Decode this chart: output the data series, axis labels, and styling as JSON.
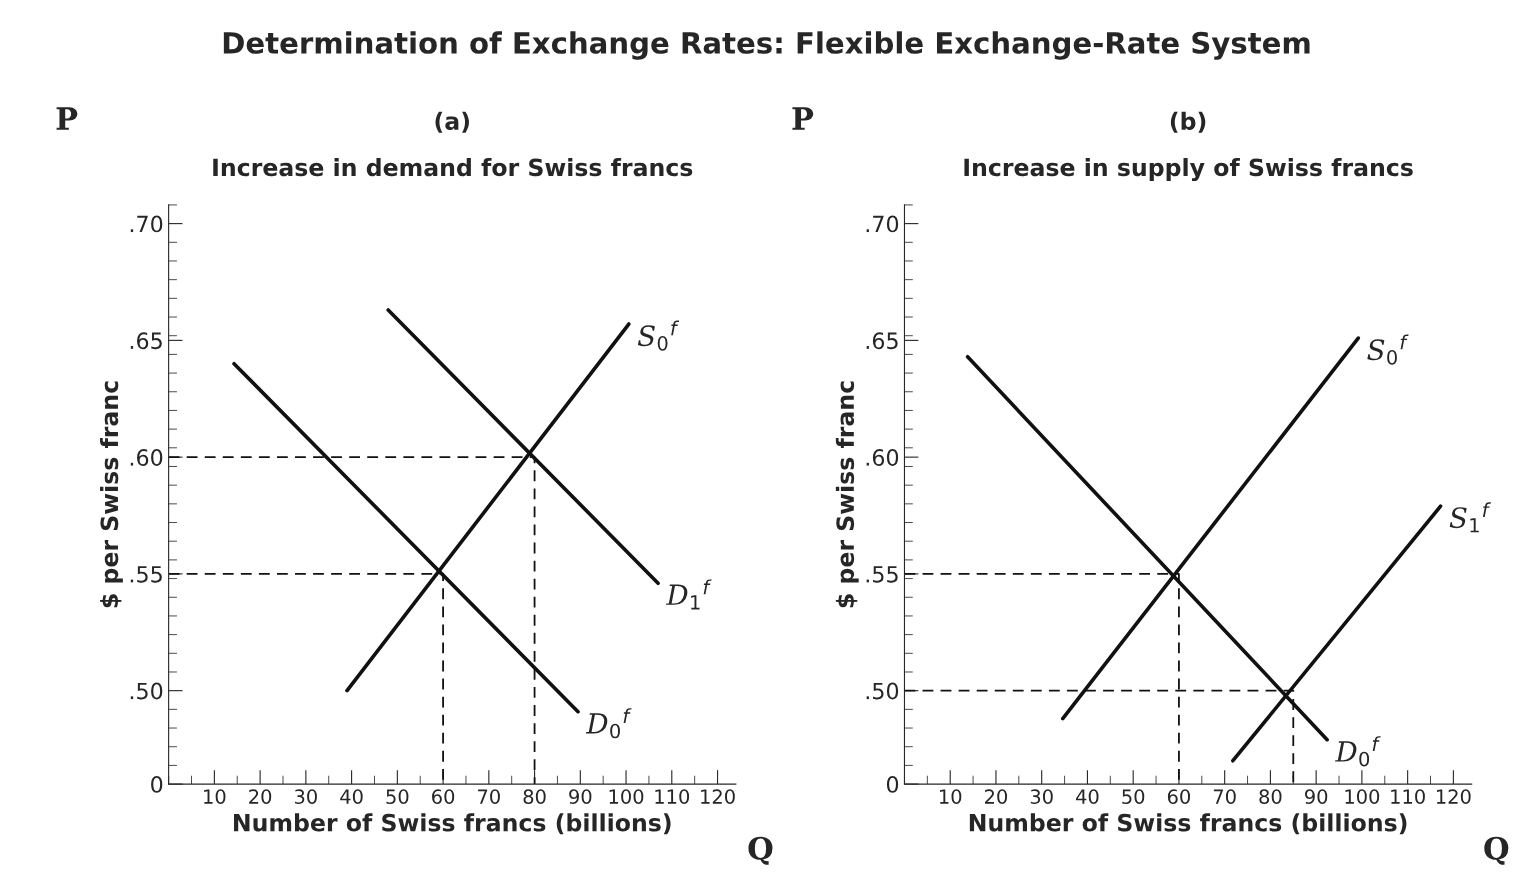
{
  "chart_data": [
    {
      "type": "line",
      "title": "(a)",
      "subtitle": "Increase in demand for Swiss francs",
      "xlabel": "Number of Swiss francs (billions)",
      "ylabel": "$ per Swiss franc",
      "xlim": [
        0,
        124
      ],
      "ylim": [
        0.46,
        0.708
      ],
      "xticks": [
        10,
        20,
        30,
        40,
        50,
        60,
        70,
        80,
        90,
        100,
        110,
        120
      ],
      "yticks": [
        {
          "value": 0.46,
          "label": "0"
        },
        {
          "value": 0.5,
          "label": ".50"
        },
        {
          "value": 0.55,
          "label": ".55"
        },
        {
          "value": 0.6,
          "label": ".60"
        },
        {
          "value": 0.65,
          "label": ".65"
        },
        {
          "value": 0.7,
          "label": ".70"
        }
      ],
      "grid": false,
      "legend": false,
      "marker": "none",
      "line_style": "solid",
      "annotations": [
        "Determination of Exchange Rates: Flexible Exchange-Rate System",
        "P",
        "Q"
      ],
      "series": [
        {
          "name": "D$_{0}$$^{f}$",
          "color": "#111111",
          "x": [
            14.3,
            89.5
          ],
          "values": [
            0.64,
            0.491
          ]
        },
        {
          "name": "S$_{0}$$^{f}$",
          "color": "#111111",
          "x": [
            39,
            100.6
          ],
          "values": [
            0.5,
            0.657
          ]
        },
        {
          "name": "D$_{1}$$^{f}$",
          "color": "#111111",
          "x": [
            48,
            107
          ],
          "values": [
            0.663,
            0.546
          ]
        },
        {
          "color": "#111111",
          "line_style": "dashed",
          "x": [
            0,
            80,
            80
          ],
          "values": [
            0.6,
            0.6,
            0.46
          ]
        },
        {
          "color": "#111111",
          "line_style": "dashed",
          "x": [
            0,
            60,
            60
          ],
          "values": [
            0.55,
            0.55,
            0.46
          ]
        }
      ]
    },
    {
      "type": "line",
      "title": "(b)",
      "subtitle": "Increase in supply of Swiss francs",
      "xlabel": "Number of Swiss francs (billions)",
      "ylabel": "$ per Swiss franc",
      "xlim": [
        0,
        124
      ],
      "ylim": [
        0.46,
        0.708
      ],
      "xticks": [
        10,
        20,
        30,
        40,
        50,
        60,
        70,
        80,
        90,
        100,
        110,
        120
      ],
      "yticks": [
        {
          "value": 0.46,
          "label": "0"
        },
        {
          "value": 0.5,
          "label": ".50"
        },
        {
          "value": 0.55,
          "label": ".55"
        },
        {
          "value": 0.6,
          "label": ".60"
        },
        {
          "value": 0.65,
          "label": ".65"
        },
        {
          "value": 0.7,
          "label": ".70"
        }
      ],
      "grid": false,
      "legend": false,
      "marker": "none",
      "line_style": "solid",
      "annotations": [
        "P",
        "Q"
      ],
      "series": [
        {
          "name": "D$_{0}$$^{f}$",
          "color": "#111111",
          "x": [
            13.8,
            92.4
          ],
          "values": [
            0.643,
            0.479
          ]
        },
        {
          "name": "S$_{0}$$^{f}$",
          "color": "#111111",
          "x": [
            34.6,
            99.2
          ],
          "values": [
            0.488,
            0.651
          ]
        },
        {
          "name": "S$_{1}$$^{f}$",
          "color": "#111111",
          "x": [
            71.8,
            117.2
          ],
          "values": [
            0.47,
            0.579
          ]
        },
        {
          "color": "#111111",
          "line_style": "dashed",
          "x": [
            0,
            60,
            60
          ],
          "values": [
            0.55,
            0.55,
            0.46
          ]
        },
        {
          "color": "#111111",
          "line_style": "dashed",
          "x": [
            0,
            85,
            85
          ],
          "values": [
            0.5,
            0.5,
            0.46
          ]
        }
      ]
    }
  ]
}
